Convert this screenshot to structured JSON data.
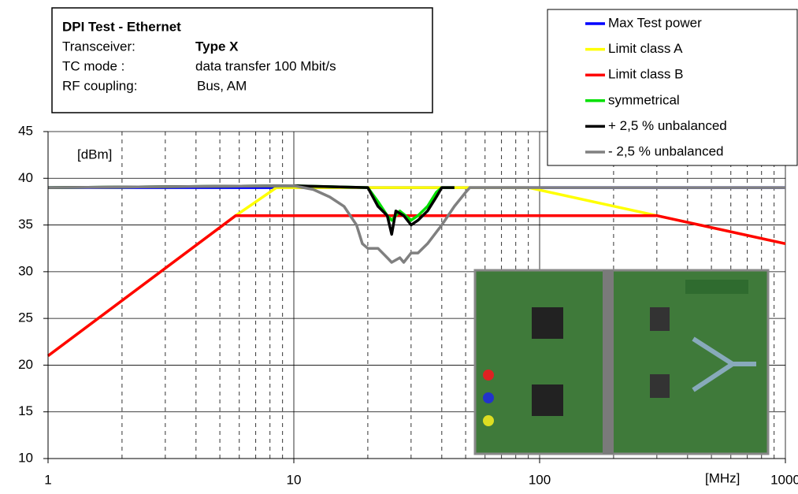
{
  "chart_data": {
    "type": "line",
    "log_x": true,
    "grid": true,
    "xlim": [
      1,
      1000
    ],
    "ylim": [
      10,
      45
    ],
    "xticks": [
      1,
      10,
      100,
      1000
    ],
    "x_minor_ticks": [
      2,
      3,
      4,
      5,
      6,
      7,
      8,
      9,
      20,
      30,
      40,
      50,
      60,
      70,
      80,
      90,
      200,
      300,
      400,
      500,
      600,
      700,
      800,
      900
    ],
    "yticks": [
      10,
      15,
      20,
      25,
      30,
      35,
      40,
      45
    ],
    "y_label": "[dBm]",
    "x_label": "[MHz]",
    "legend": "top-right",
    "info_box": {
      "title": "DPI Test - Ethernet",
      "rows": [
        [
          "Transceiver:",
          "Type X"
        ],
        [
          "TC mode :",
          "data transfer 100 Mbit/s"
        ],
        [
          "RF coupling:",
          "Bus, AM"
        ]
      ]
    },
    "series": [
      {
        "name": "Max Test power",
        "color": "#0000ff",
        "x": [
          1,
          1000
        ],
        "values": [
          39,
          39
        ]
      },
      {
        "name": "Limit class A",
        "color": "#ffff00",
        "x": [
          1,
          5.8,
          8.5,
          90,
          300,
          1000
        ],
        "values": [
          21,
          36,
          39,
          39,
          36,
          33
        ]
      },
      {
        "name": "Limit class B",
        "color": "#ff0000",
        "x": [
          1,
          5.8,
          300,
          1000
        ],
        "values": [
          21,
          36,
          36,
          33
        ]
      },
      {
        "name": "symmetrical",
        "color": "#00e000",
        "x": [
          1,
          10,
          20,
          22,
          24,
          25,
          27,
          30,
          32,
          35,
          38,
          40,
          45
        ],
        "values": [
          39,
          39.2,
          39,
          37.5,
          36,
          35.5,
          36.5,
          35.5,
          36,
          37,
          38.5,
          39,
          39
        ]
      },
      {
        "name": "+ 2,5 % unbalanced",
        "color": "#000000",
        "x": [
          1,
          10,
          20,
          22,
          24,
          25,
          26,
          28,
          30,
          32,
          35,
          38,
          40,
          45
        ],
        "values": [
          39,
          39.2,
          39,
          37,
          36,
          34,
          36.5,
          36,
          35,
          35.5,
          36.5,
          38,
          39,
          39
        ]
      },
      {
        "name": "- 2,5 % unbalanced",
        "color": "#808080",
        "x": [
          1,
          10,
          12,
          14,
          16,
          18,
          19,
          20,
          22,
          24,
          25,
          27,
          28,
          30,
          32,
          35,
          40,
          45,
          50,
          52,
          1000
        ],
        "values": [
          39,
          39.2,
          38.8,
          38,
          37,
          35,
          33,
          32.5,
          32.5,
          31.5,
          31,
          31.5,
          31,
          32,
          32,
          33,
          35,
          37,
          38.5,
          39,
          39
        ]
      }
    ]
  }
}
